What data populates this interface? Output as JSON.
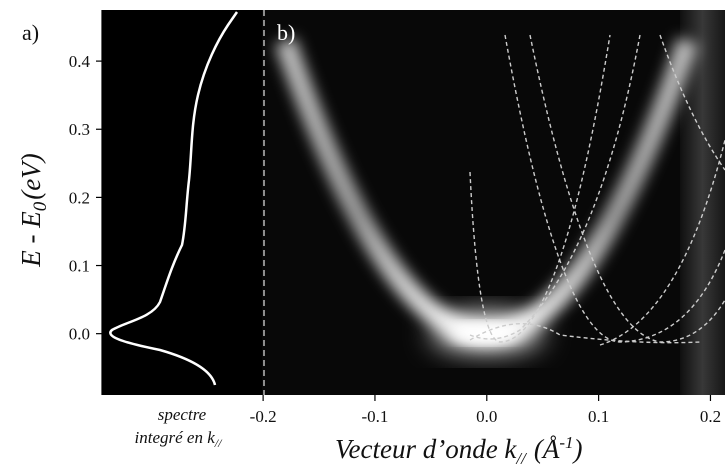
{
  "chart_data": {
    "type": "image",
    "panel_labels": [
      "a)",
      "b)"
    ],
    "ylabel": {
      "main": "E - E",
      "sub": "0",
      "unit": "(eV)"
    },
    "xlabel": {
      "main": "Vecteur d’onde k",
      "sub": "//",
      "unit": "(Å",
      "sup": "-1",
      "close": ")"
    },
    "side_label": {
      "line1": "spectre",
      "line2": "integré en k",
      "sub": "//"
    },
    "xlim": [
      -0.201,
      0.213
    ],
    "ylim": [
      -0.09,
      0.475
    ],
    "xticks": [
      -0.2,
      -0.1,
      {
        "value": 0,
        "label": "0.0"
      },
      0.1,
      0.2
    ],
    "yticks": [
      {
        "value": 0,
        "label": "0.0"
      },
      0.1,
      0.2,
      0.3,
      0.4
    ]
  }
}
